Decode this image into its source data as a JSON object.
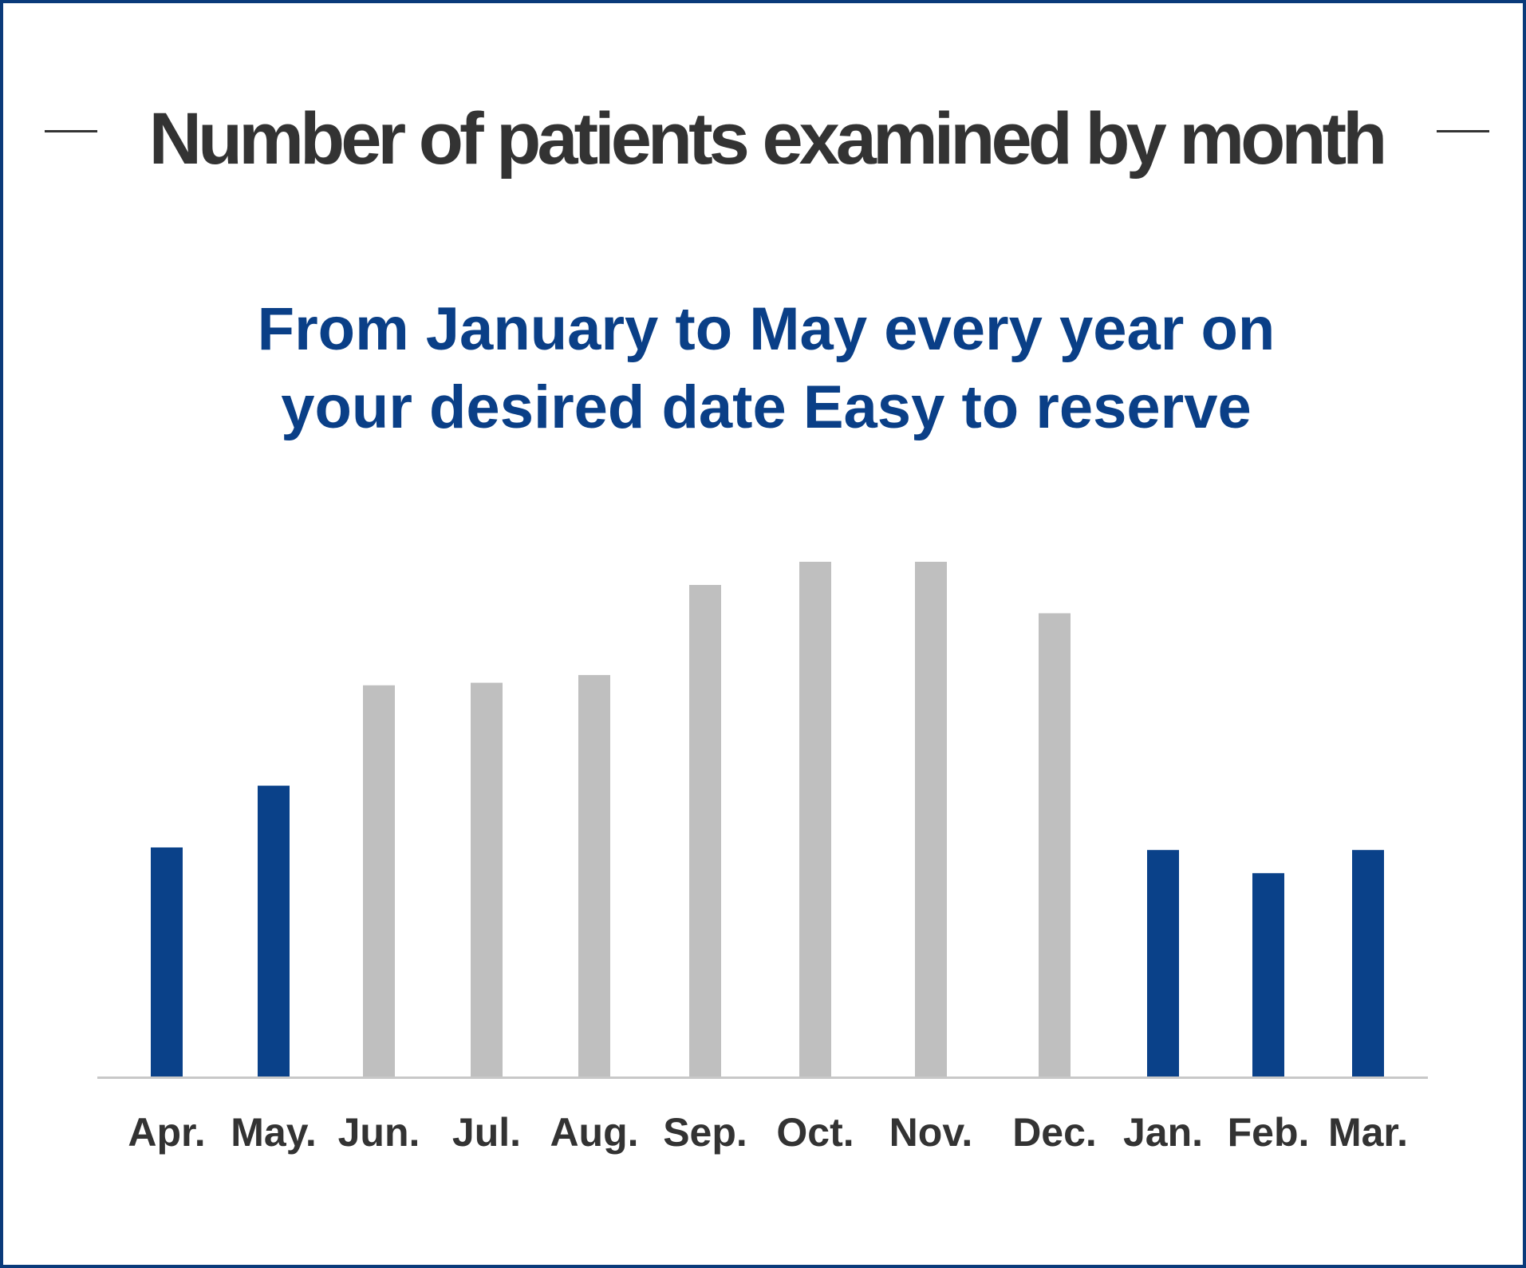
{
  "title": "Number of patients examined by month",
  "subtitle": {
    "line1": "From January to May every year on",
    "line2": "your desired date Easy to reserve"
  },
  "colors": {
    "highlight": "#0a4189",
    "normal": "#bfbfbf",
    "axis": "#c8c8c8",
    "title": "#333333",
    "subtitle": "#0a3f87",
    "border": "#0a3a7a"
  },
  "chart_data": {
    "type": "bar",
    "title": "Number of patients examined by month",
    "xlabel": "",
    "ylabel": "",
    "categories": [
      "Apr.",
      "May.",
      "Jun.",
      "Jul.",
      "Aug.",
      "Sep.",
      "Oct.",
      "Nov.",
      "Dec.",
      "Jan.",
      "Feb.",
      "Mar."
    ],
    "values": [
      44.5,
      56.5,
      76,
      76.5,
      78,
      95.5,
      100,
      100,
      90,
      44,
      39.5,
      44
    ],
    "highlighted": [
      true,
      true,
      false,
      false,
      false,
      false,
      false,
      false,
      false,
      true,
      true,
      true
    ],
    "ylim": [
      0,
      100
    ],
    "grid": false,
    "legend": "none"
  }
}
